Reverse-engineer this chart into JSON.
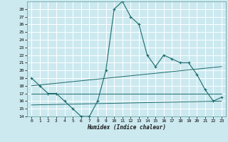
{
  "title": "",
  "xlabel": "Humidex (Indice chaleur)",
  "ylabel": "",
  "bg_color": "#cce9f0",
  "grid_color": "#ffffff",
  "line_color": "#1a6b6b",
  "xlim": [
    -0.5,
    23.5
  ],
  "ylim": [
    14,
    29
  ],
  "yticks": [
    14,
    15,
    16,
    17,
    18,
    19,
    20,
    21,
    22,
    23,
    24,
    25,
    26,
    27,
    28
  ],
  "xticks": [
    0,
    1,
    2,
    3,
    4,
    5,
    6,
    7,
    8,
    9,
    10,
    11,
    12,
    13,
    14,
    15,
    16,
    17,
    18,
    19,
    20,
    21,
    22,
    23
  ],
  "series1_x": [
    0,
    1,
    2,
    3,
    4,
    5,
    6,
    7,
    8,
    9,
    10,
    11,
    12,
    13,
    14,
    15,
    16,
    17,
    18,
    19,
    20,
    21,
    22,
    23
  ],
  "series1_y": [
    19,
    18,
    17,
    17,
    16,
    15,
    14,
    14,
    16,
    20,
    28,
    29,
    27,
    26,
    22,
    20.5,
    22,
    21.5,
    21,
    21,
    19.5,
    17.5,
    16,
    16.5
  ],
  "series2_x": [
    0,
    23
  ],
  "series2_y": [
    18.0,
    20.5
  ],
  "series3_x": [
    0,
    23
  ],
  "series3_y": [
    17.0,
    17.0
  ],
  "series4_x": [
    0,
    23
  ],
  "series4_y": [
    15.5,
    16.0
  ]
}
